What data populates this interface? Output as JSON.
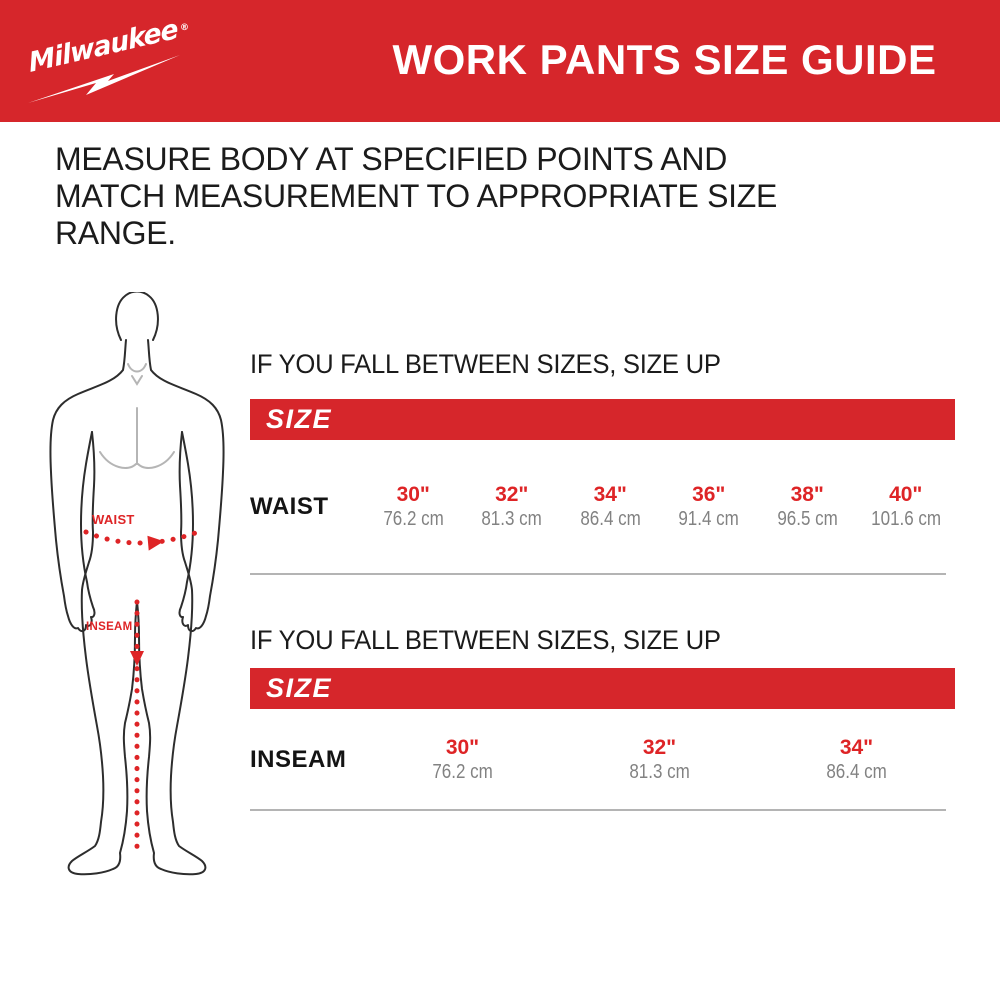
{
  "brand": {
    "logo_text": "Milwaukee",
    "registered_mark": "®"
  },
  "header": {
    "title": "WORK PANTS SIZE GUIDE"
  },
  "intro": {
    "text": "MEASURE BODY AT SPECIFIED POINTS AND MATCH MEASUREMENT TO APPROPRIATE SIZE RANGE."
  },
  "figure": {
    "waist_label": "WAIST",
    "inseam_label": "INSEAM"
  },
  "colors": {
    "brand_red": "#D6262B",
    "accent_red": "#DE2426",
    "muted_gray": "#828282",
    "divider_gray": "#B4B4B4"
  },
  "tables": [
    {
      "note": "IF YOU FALL BETWEEN SIZES, SIZE UP",
      "header": "SIZE",
      "row_label": "WAIST",
      "columns": [
        {
          "inches": "30\"",
          "cm": "76.2 cm"
        },
        {
          "inches": "32\"",
          "cm": "81.3 cm"
        },
        {
          "inches": "34\"",
          "cm": "86.4 cm"
        },
        {
          "inches": "36\"",
          "cm": "91.4 cm"
        },
        {
          "inches": "38\"",
          "cm": "96.5 cm"
        },
        {
          "inches": "40\"",
          "cm": "101.6 cm"
        }
      ]
    },
    {
      "note": "IF YOU FALL BETWEEN SIZES, SIZE UP",
      "header": "SIZE",
      "row_label": "INSEAM",
      "columns": [
        {
          "inches": "30\"",
          "cm": "76.2 cm"
        },
        {
          "inches": "32\"",
          "cm": "81.3 cm"
        },
        {
          "inches": "34\"",
          "cm": "86.4 cm"
        }
      ]
    }
  ]
}
